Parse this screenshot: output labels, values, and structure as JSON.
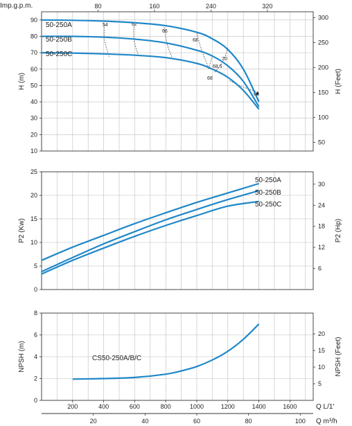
{
  "chart_data": [
    {
      "type": "line",
      "id": "head",
      "ylabel": "H (m)",
      "ylabel_right": "H (Feet)",
      "xlabel_top": "Imp.g.p.m.",
      "xlim": [
        0,
        1750
      ],
      "ylim": [
        10,
        95
      ],
      "yticks": [
        10,
        20,
        30,
        40,
        50,
        60,
        70,
        80,
        90
      ],
      "yticks_right": [
        50,
        100,
        150,
        200,
        250,
        300
      ],
      "xticks_top": [
        80,
        160,
        240,
        320
      ],
      "grid": true,
      "series": [
        {
          "name": "50-250A",
          "x": [
            0,
            200,
            400,
            600,
            800,
            1000,
            1100,
            1200,
            1300,
            1400
          ],
          "y": [
            90,
            89.8,
            89.3,
            88.3,
            86.5,
            82.5,
            78.5,
            72,
            60,
            40
          ]
        },
        {
          "name": "50-250B",
          "x": [
            0,
            200,
            400,
            600,
            800,
            1000,
            1100,
            1200,
            1300,
            1400
          ],
          "y": [
            80,
            80,
            79.5,
            78.3,
            76,
            71.5,
            68,
            62,
            52.5,
            37
          ]
        },
        {
          "name": "50-250C",
          "x": [
            0,
            200,
            400,
            600,
            800,
            1000,
            1100,
            1200,
            1300,
            1400
          ],
          "y": [
            70,
            69.8,
            69.3,
            68.5,
            67,
            63.5,
            60,
            55,
            47,
            35.5
          ]
        }
      ],
      "efficiency_lines": [
        {
          "label": "54",
          "x": [
            405,
            405,
            435
          ],
          "y": [
            87,
            78,
            67.5
          ]
        },
        {
          "label": "62",
          "x": [
            595,
            595,
            625
          ],
          "y": [
            87.5,
            78,
            68
          ]
        },
        {
          "label": "66",
          "x": [
            790,
            810,
            845
          ],
          "y": [
            85.5,
            75,
            66
          ]
        },
        {
          "label": "68",
          "x": [
            1000,
            1030,
            1075
          ],
          "y": [
            82,
            72,
            61
          ]
        },
        {
          "label": "70",
          "x": [
            1200,
            1170,
            1115
          ],
          "y": [
            73,
            65,
            58
          ]
        },
        {
          "label": "68.5",
          "x": [
            1100,
            1075
          ],
          "y": [
            68,
            60
          ]
        },
        {
          "label": "68",
          "x": [
            1395,
            1300,
            1210
          ],
          "y": [
            46,
            49,
            53
          ]
        }
      ],
      "efficiency_label_text": [
        "54",
        "62",
        "66",
        "68",
        "70",
        "68.5",
        "68",
        "68"
      ]
    },
    {
      "type": "line",
      "id": "power",
      "ylabel": "P2 (Kw)",
      "ylabel_right": "P2 (Hp)",
      "xlim": [
        0,
        1750
      ],
      "ylim": [
        0,
        25
      ],
      "yticks": [
        0,
        5,
        10,
        15,
        20,
        25
      ],
      "yticks_right": [
        6,
        12,
        18,
        24,
        30
      ],
      "grid": true,
      "series": [
        {
          "name": "50-250A",
          "x": [
            0,
            200,
            400,
            600,
            800,
            1000,
            1200,
            1400
          ],
          "y": [
            6.2,
            9,
            11.5,
            14,
            16.3,
            18.5,
            20.5,
            22.5
          ]
        },
        {
          "name": "50-250B",
          "x": [
            0,
            200,
            400,
            600,
            800,
            1000,
            1200,
            1400
          ],
          "y": [
            3.8,
            6.8,
            9.7,
            12.3,
            14.8,
            17,
            19.1,
            21
          ]
        },
        {
          "name": "50-250C",
          "x": [
            0,
            200,
            400,
            600,
            800,
            1000,
            1200,
            1400
          ],
          "y": [
            3.3,
            6.2,
            8.8,
            11.3,
            13.6,
            15.7,
            17.7,
            18.7
          ]
        }
      ]
    },
    {
      "type": "line",
      "id": "npsh",
      "ylabel": "NPSH (m)",
      "ylabel_right": "NPSH (Feet)",
      "xlabel": "Q  L/1'",
      "xlabel_bottom2": "Q  m³/h",
      "xlim": [
        0,
        1750
      ],
      "ylim": [
        0,
        8
      ],
      "yticks": [
        0,
        2,
        4,
        6,
        8
      ],
      "yticks_right": [
        5,
        10,
        15,
        20
      ],
      "xticks": [
        200,
        400,
        600,
        800,
        1000,
        1200,
        1400,
        1600
      ],
      "xticks_m3h": [
        20,
        40,
        60,
        80,
        100
      ],
      "grid": true,
      "series": [
        {
          "name": "CS50-250A/B/C",
          "x": [
            200,
            400,
            600,
            800,
            900,
            1000,
            1100,
            1200,
            1300,
            1400
          ],
          "y": [
            1.95,
            2.0,
            2.1,
            2.4,
            2.7,
            3.1,
            3.7,
            4.5,
            5.6,
            7.0
          ]
        }
      ]
    }
  ]
}
